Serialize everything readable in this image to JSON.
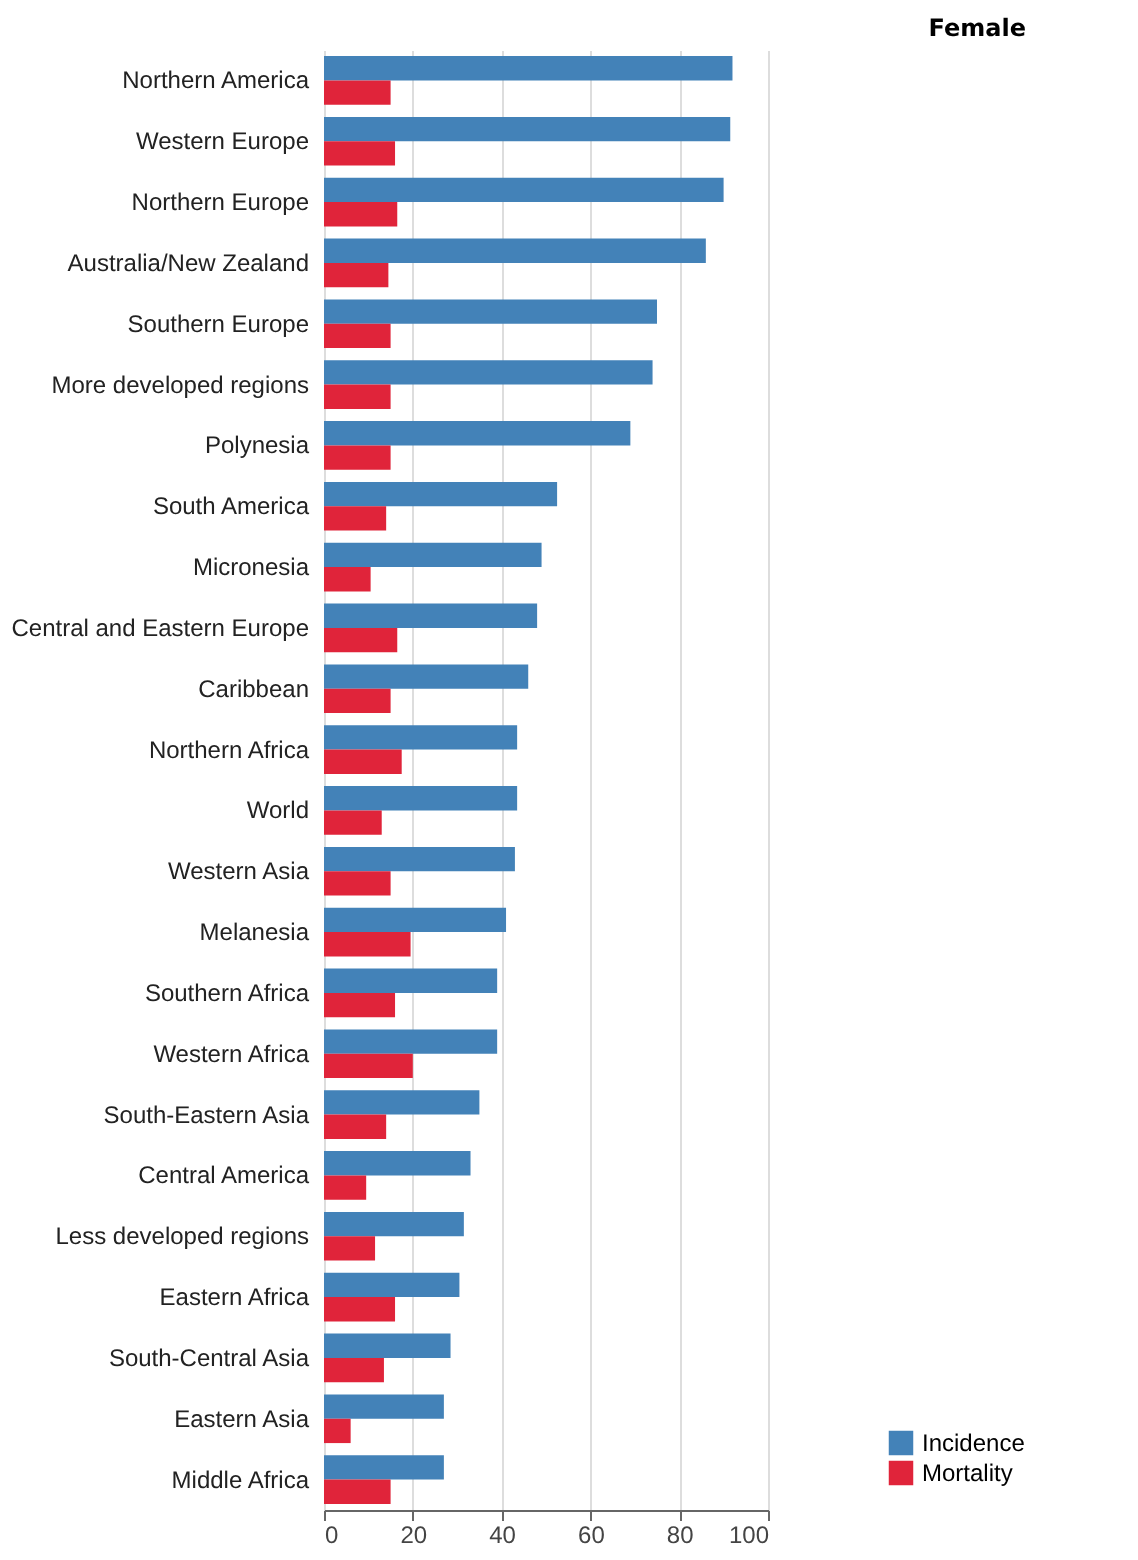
{
  "chart_data": {
    "type": "bar",
    "orientation": "horizontal",
    "title": "Female",
    "categories": [
      "Northern America",
      "Western Europe",
      "Northern Europe",
      "Australia/New Zealand",
      "Southern Europe",
      "More developed regions",
      "Polynesia",
      "South America",
      "Micronesia",
      "Central and Eastern Europe",
      "Caribbean",
      "Northern Africa",
      "World",
      "Western Asia",
      "Melanesia",
      "Southern Africa",
      "Western Africa",
      "South-Eastern Asia",
      "Central America",
      "Less developed regions",
      "Eastern Africa",
      "South-Central Asia",
      "Eastern Asia",
      "Middle Africa"
    ],
    "series": [
      {
        "name": "Incidence",
        "color": "#4382b8",
        "values": [
          92,
          91.5,
          90,
          86,
          75,
          74,
          69,
          52.5,
          49,
          48,
          46,
          43.5,
          43.5,
          43,
          41,
          39,
          39,
          35,
          33,
          31.5,
          30.5,
          28.5,
          27,
          27
        ]
      },
      {
        "name": "Mortality",
        "color": "#e0243a",
        "values": [
          15,
          16,
          16.5,
          14.5,
          15,
          15,
          15,
          14,
          10.5,
          16.5,
          15,
          17.5,
          13,
          15,
          19.5,
          16,
          20,
          14,
          9.5,
          11.5,
          16,
          13.5,
          6,
          15
        ]
      }
    ],
    "xlim": [
      0,
      100
    ],
    "xticks": [
      0,
      20,
      40,
      60,
      80,
      100
    ],
    "grid": "x",
    "legend": "bottom right"
  }
}
